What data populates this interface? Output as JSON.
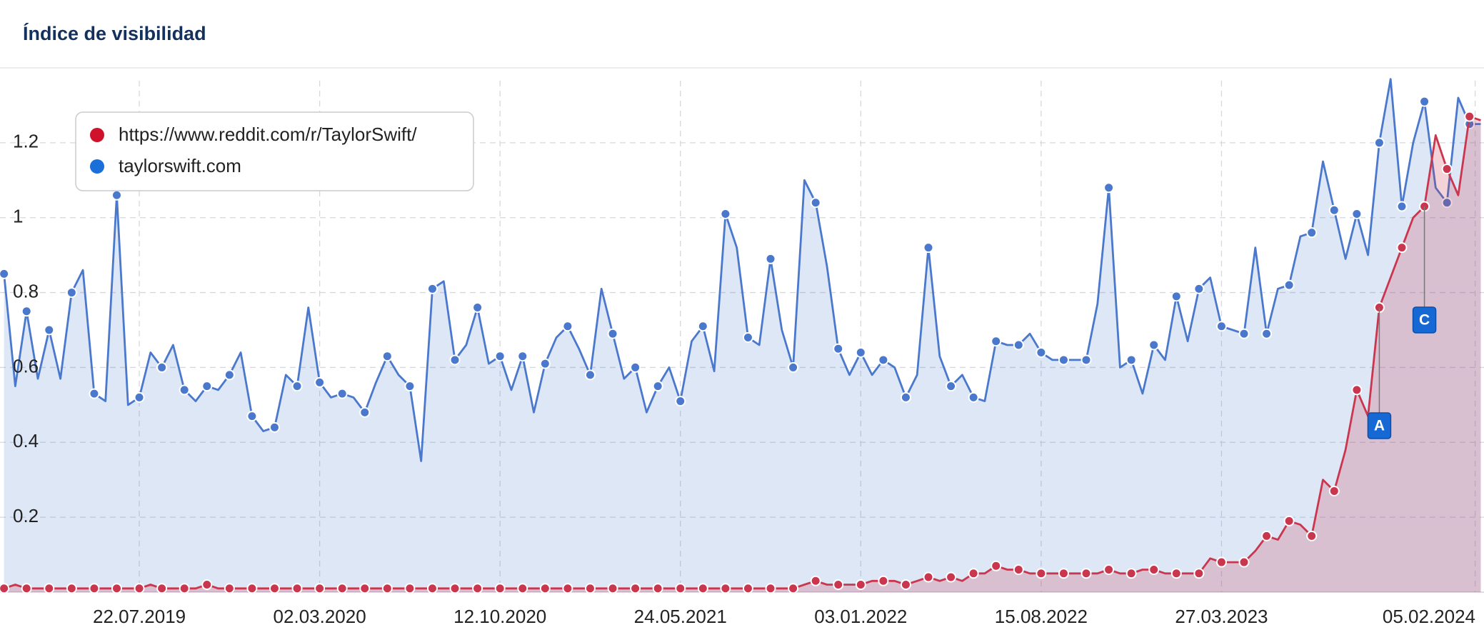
{
  "chart_data": {
    "type": "line",
    "title": "Índice de visibilidad",
    "x": [
      "2019-02-04",
      "2019-02-18",
      "2019-03-04",
      "2019-03-18",
      "2019-04-01",
      "2019-04-15",
      "2019-04-29",
      "2019-05-13",
      "2019-05-27",
      "2019-06-10",
      "2019-06-24",
      "2019-07-08",
      "2019-07-22",
      "2019-08-05",
      "2019-08-19",
      "2019-09-02",
      "2019-09-16",
      "2019-09-30",
      "2019-10-14",
      "2019-10-28",
      "2019-11-11",
      "2019-11-25",
      "2019-12-09",
      "2019-12-23",
      "2020-01-06",
      "2020-01-20",
      "2020-02-03",
      "2020-02-17",
      "2020-03-02",
      "2020-03-16",
      "2020-03-30",
      "2020-04-13",
      "2020-04-27",
      "2020-05-11",
      "2020-05-25",
      "2020-06-08",
      "2020-06-22",
      "2020-07-06",
      "2020-07-20",
      "2020-08-03",
      "2020-08-17",
      "2020-08-31",
      "2020-09-14",
      "2020-09-28",
      "2020-10-12",
      "2020-10-26",
      "2020-11-09",
      "2020-11-23",
      "2020-12-07",
      "2020-12-21",
      "2021-01-04",
      "2021-01-18",
      "2021-02-01",
      "2021-02-15",
      "2021-03-01",
      "2021-03-15",
      "2021-03-29",
      "2021-04-12",
      "2021-04-26",
      "2021-05-10",
      "2021-05-24",
      "2021-06-07",
      "2021-06-21",
      "2021-07-05",
      "2021-07-19",
      "2021-08-02",
      "2021-08-16",
      "2021-08-30",
      "2021-09-13",
      "2021-09-27",
      "2021-10-11",
      "2021-10-25",
      "2021-11-08",
      "2021-11-22",
      "2021-12-06",
      "2021-12-20",
      "2022-01-03",
      "2022-01-17",
      "2022-01-31",
      "2022-02-14",
      "2022-02-28",
      "2022-03-14",
      "2022-03-28",
      "2022-04-11",
      "2022-04-25",
      "2022-05-09",
      "2022-05-23",
      "2022-06-06",
      "2022-06-20",
      "2022-07-04",
      "2022-07-18",
      "2022-08-01",
      "2022-08-15",
      "2022-08-29",
      "2022-09-12",
      "2022-09-26",
      "2022-10-10",
      "2022-10-24",
      "2022-11-07",
      "2022-11-21",
      "2022-12-05",
      "2022-12-19",
      "2023-01-02",
      "2023-01-16",
      "2023-01-30",
      "2023-02-13",
      "2023-02-27",
      "2023-03-13",
      "2023-03-27",
      "2023-04-10",
      "2023-04-24",
      "2023-05-08",
      "2023-05-22",
      "2023-06-05",
      "2023-06-19",
      "2023-07-03",
      "2023-07-17",
      "2023-07-31",
      "2023-08-14",
      "2023-08-28",
      "2023-09-11",
      "2023-09-25",
      "2023-10-09",
      "2023-10-23",
      "2023-11-06",
      "2023-11-20",
      "2023-12-04",
      "2023-12-18",
      "2024-01-01",
      "2024-01-15",
      "2024-01-29",
      "2024-02-12"
    ],
    "series": [
      {
        "name": "https://www.reddit.com/r/TaylorSwift/",
        "color": "#c9364d",
        "values": [
          0.01,
          0.02,
          0.01,
          0.01,
          0.01,
          0.01,
          0.01,
          0.01,
          0.01,
          0.01,
          0.01,
          0.01,
          0.01,
          0.02,
          0.01,
          0.01,
          0.01,
          0.01,
          0.02,
          0.01,
          0.01,
          0.01,
          0.01,
          0.01,
          0.01,
          0.01,
          0.01,
          0.01,
          0.01,
          0.01,
          0.01,
          0.01,
          0.01,
          0.01,
          0.01,
          0.01,
          0.01,
          0.01,
          0.01,
          0.01,
          0.01,
          0.01,
          0.01,
          0.01,
          0.01,
          0.01,
          0.01,
          0.01,
          0.01,
          0.01,
          0.01,
          0.01,
          0.01,
          0.01,
          0.01,
          0.01,
          0.01,
          0.01,
          0.01,
          0.01,
          0.01,
          0.01,
          0.01,
          0.01,
          0.01,
          0.01,
          0.01,
          0.01,
          0.01,
          0.01,
          0.01,
          0.02,
          0.03,
          0.02,
          0.02,
          0.02,
          0.02,
          0.03,
          0.03,
          0.03,
          0.02,
          0.03,
          0.04,
          0.03,
          0.04,
          0.03,
          0.05,
          0.05,
          0.07,
          0.06,
          0.06,
          0.05,
          0.05,
          0.05,
          0.05,
          0.05,
          0.05,
          0.05,
          0.06,
          0.05,
          0.05,
          0.06,
          0.06,
          0.05,
          0.05,
          0.05,
          0.05,
          0.09,
          0.08,
          0.08,
          0.08,
          0.11,
          0.15,
          0.14,
          0.19,
          0.18,
          0.15,
          0.3,
          0.27,
          0.38,
          0.54,
          0.47,
          0.76,
          0.84,
          0.92,
          1.0,
          1.03,
          1.22,
          1.13,
          1.06,
          1.27,
          1.26
        ]
      },
      {
        "name": "taylorswift.com",
        "color": "#4a78cc",
        "values": [
          0.85,
          0.55,
          0.75,
          0.57,
          0.7,
          0.57,
          0.8,
          0.86,
          0.53,
          0.51,
          1.06,
          0.5,
          0.52,
          0.64,
          0.6,
          0.66,
          0.54,
          0.51,
          0.55,
          0.54,
          0.58,
          0.64,
          0.47,
          0.43,
          0.44,
          0.58,
          0.55,
          0.76,
          0.56,
          0.52,
          0.53,
          0.52,
          0.48,
          0.56,
          0.63,
          0.58,
          0.55,
          0.35,
          0.81,
          0.83,
          0.62,
          0.66,
          0.76,
          0.61,
          0.63,
          0.54,
          0.63,
          0.48,
          0.61,
          0.68,
          0.71,
          0.65,
          0.58,
          0.81,
          0.69,
          0.57,
          0.6,
          0.48,
          0.55,
          0.6,
          0.51,
          0.67,
          0.71,
          0.59,
          1.01,
          0.92,
          0.68,
          0.66,
          0.89,
          0.7,
          0.6,
          1.1,
          1.04,
          0.87,
          0.65,
          0.58,
          0.64,
          0.58,
          0.62,
          0.6,
          0.52,
          0.58,
          0.92,
          0.63,
          0.55,
          0.58,
          0.52,
          0.51,
          0.67,
          0.66,
          0.66,
          0.69,
          0.64,
          0.62,
          0.62,
          0.62,
          0.62,
          0.77,
          1.08,
          0.6,
          0.62,
          0.53,
          0.66,
          0.62,
          0.79,
          0.67,
          0.81,
          0.84,
          0.71,
          0.7,
          0.69,
          0.92,
          0.69,
          0.81,
          0.82,
          0.95,
          0.96,
          1.15,
          1.02,
          0.89,
          1.01,
          0.9,
          1.2,
          1.37,
          1.03,
          1.2,
          1.31,
          1.08,
          1.04,
          1.32,
          1.25,
          1.25
        ]
      }
    ],
    "xlim": [
      "2019-01-30",
      "2024-02-16"
    ],
    "xticks": [
      {
        "value": "2019-07-22",
        "label": "22.07.2019"
      },
      {
        "value": "2020-03-02",
        "label": "02.03.2020"
      },
      {
        "value": "2020-10-12",
        "label": "12.10.2020"
      },
      {
        "value": "2021-05-24",
        "label": "24.05.2021"
      },
      {
        "value": "2022-01-03",
        "label": "03.01.2022"
      },
      {
        "value": "2022-08-15",
        "label": "15.08.2022"
      },
      {
        "value": "2023-03-27",
        "label": "27.03.2023"
      },
      {
        "value": "2024-02-05",
        "label": "05.02.2024"
      }
    ],
    "ylim": [
      0,
      1.4
    ],
    "yticks": [
      0.2,
      0.4,
      0.6,
      0.8,
      1,
      1.2
    ],
    "grid": true,
    "legend": "upper left",
    "annotations": [
      {
        "x": "2023-10-09",
        "label": "A"
      },
      {
        "x": "2023-12-04",
        "label": "C"
      }
    ]
  }
}
